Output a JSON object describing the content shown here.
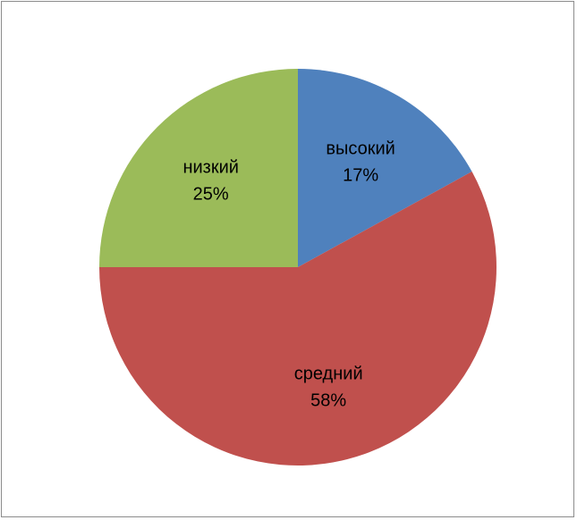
{
  "chart_data": {
    "type": "pie",
    "title": "",
    "legend": "none",
    "slices": [
      {
        "label": "высокий",
        "percent_label": "17%",
        "value": 17,
        "color": "#4f81bd"
      },
      {
        "label": "средний",
        "percent_label": "58%",
        "value": 58,
        "color": "#c0504d"
      },
      {
        "label": "низкий",
        "percent_label": "25%",
        "value": 25,
        "color": "#9bbb59"
      }
    ]
  }
}
